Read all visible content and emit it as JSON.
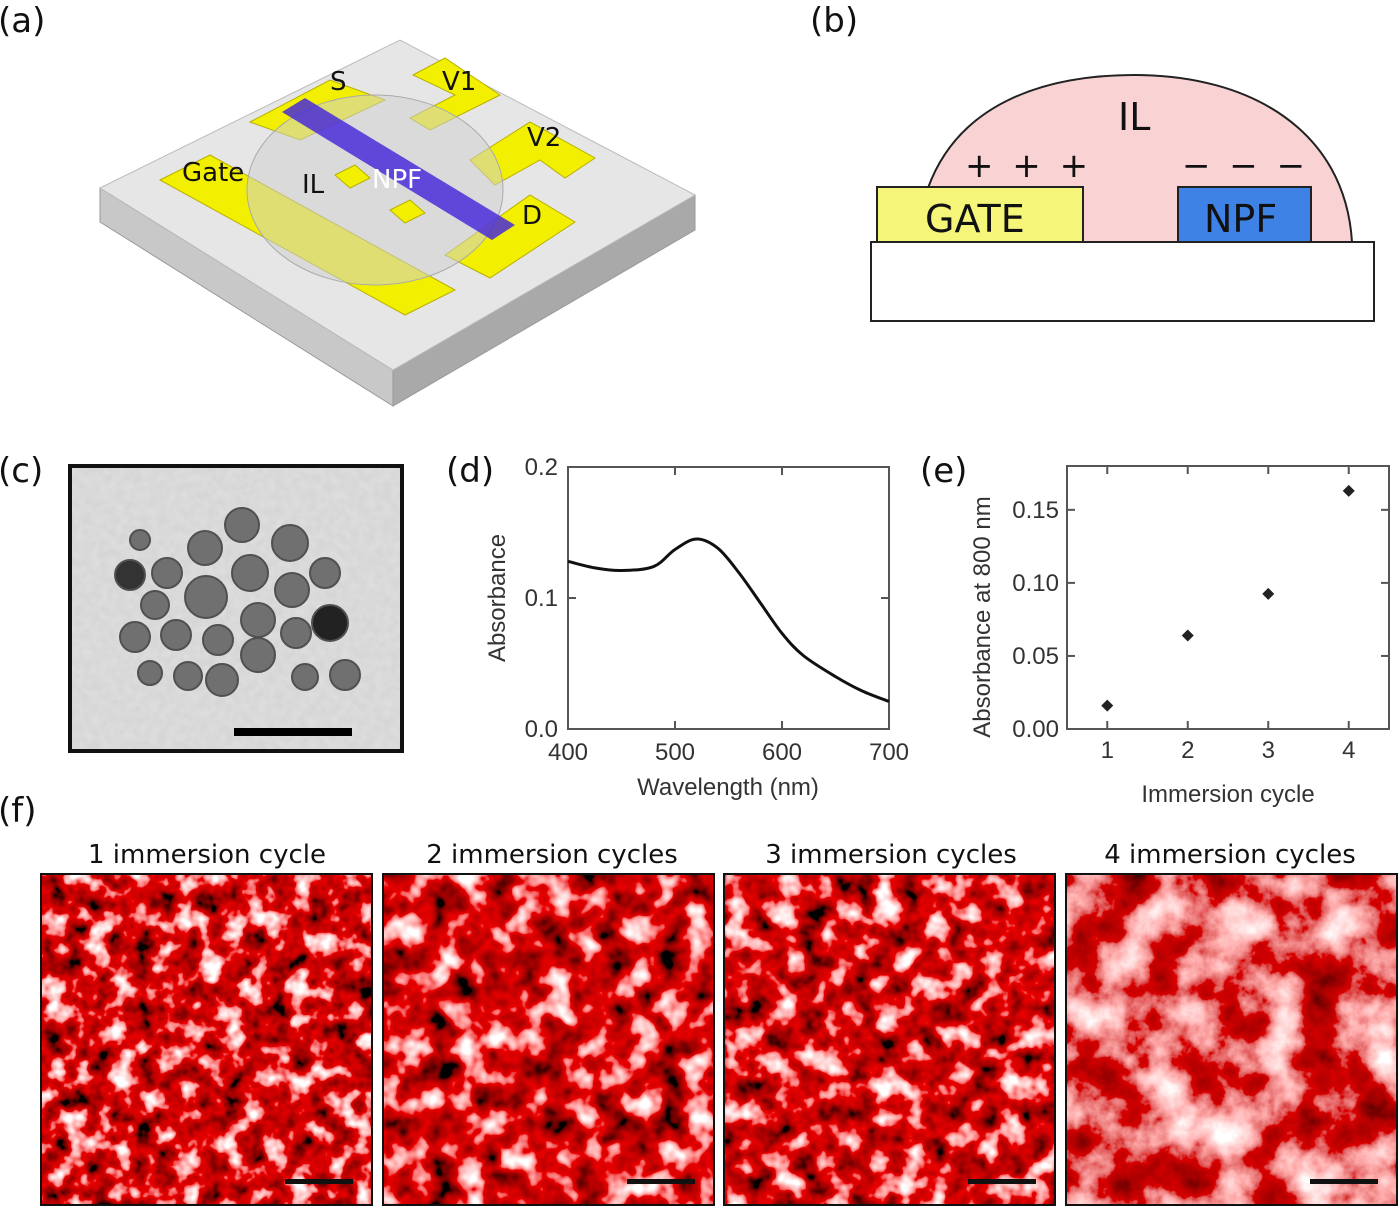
{
  "panel_labels": {
    "a": "(a)",
    "b": "(b)",
    "c": "(c)",
    "d": "(d)",
    "e": "(e)",
    "f": "(f)"
  },
  "panel_a": {
    "labels": {
      "source": "S",
      "v1": "V1",
      "v2": "V2",
      "gate": "Gate",
      "il": "IL",
      "npf": "NPF",
      "drain": "D"
    },
    "colors": {
      "electrode": "#f2f000",
      "npf": "#4a2bd8",
      "substrate": "#d8d8d8"
    }
  },
  "panel_b": {
    "labels": {
      "il": "IL",
      "gate": "GATE",
      "npf": "NPF",
      "positive": "+ + +",
      "negative": "− − −"
    },
    "colors": {
      "il": "#f9d3d3",
      "gate": "#f5f57a",
      "npf": "#3f82e6"
    }
  },
  "chart_data": [
    {
      "type": "line",
      "xlabel": "Wavelength (nm)",
      "ylabel": "Absorbance",
      "xlim": [
        400,
        700
      ],
      "ylim": [
        0,
        0.2
      ],
      "xticks": [
        "400",
        "500",
        "600",
        "700"
      ],
      "yticks": [
        "0.0",
        "0.1",
        "0.2"
      ],
      "x": [
        400,
        425,
        450,
        480,
        500,
        520,
        540,
        560,
        580,
        600,
        620,
        650,
        675,
        700
      ],
      "y": [
        0.128,
        0.123,
        0.121,
        0.124,
        0.137,
        0.145,
        0.138,
        0.119,
        0.096,
        0.073,
        0.056,
        0.04,
        0.029,
        0.021
      ],
      "grid": false
    },
    {
      "type": "scatter",
      "xlabel": "Immersion cycle",
      "ylabel": "Absorbance at 800 nm",
      "xlim": [
        0.5,
        4.5
      ],
      "ylim": [
        0,
        0.18
      ],
      "xticks": [
        "1",
        "2",
        "3",
        "4"
      ],
      "yticks": [
        "0.00",
        "0.05",
        "0.10",
        "0.15"
      ],
      "x": [
        1,
        2,
        3,
        4
      ],
      "y": [
        0.016,
        0.064,
        0.0925,
        0.163
      ],
      "grid": false
    }
  ],
  "panel_f": {
    "titles": [
      "1 immersion cycle",
      "2 immersion cycles",
      "3 immersion cycles",
      "4 immersion cycles"
    ],
    "color": "#b02020"
  }
}
